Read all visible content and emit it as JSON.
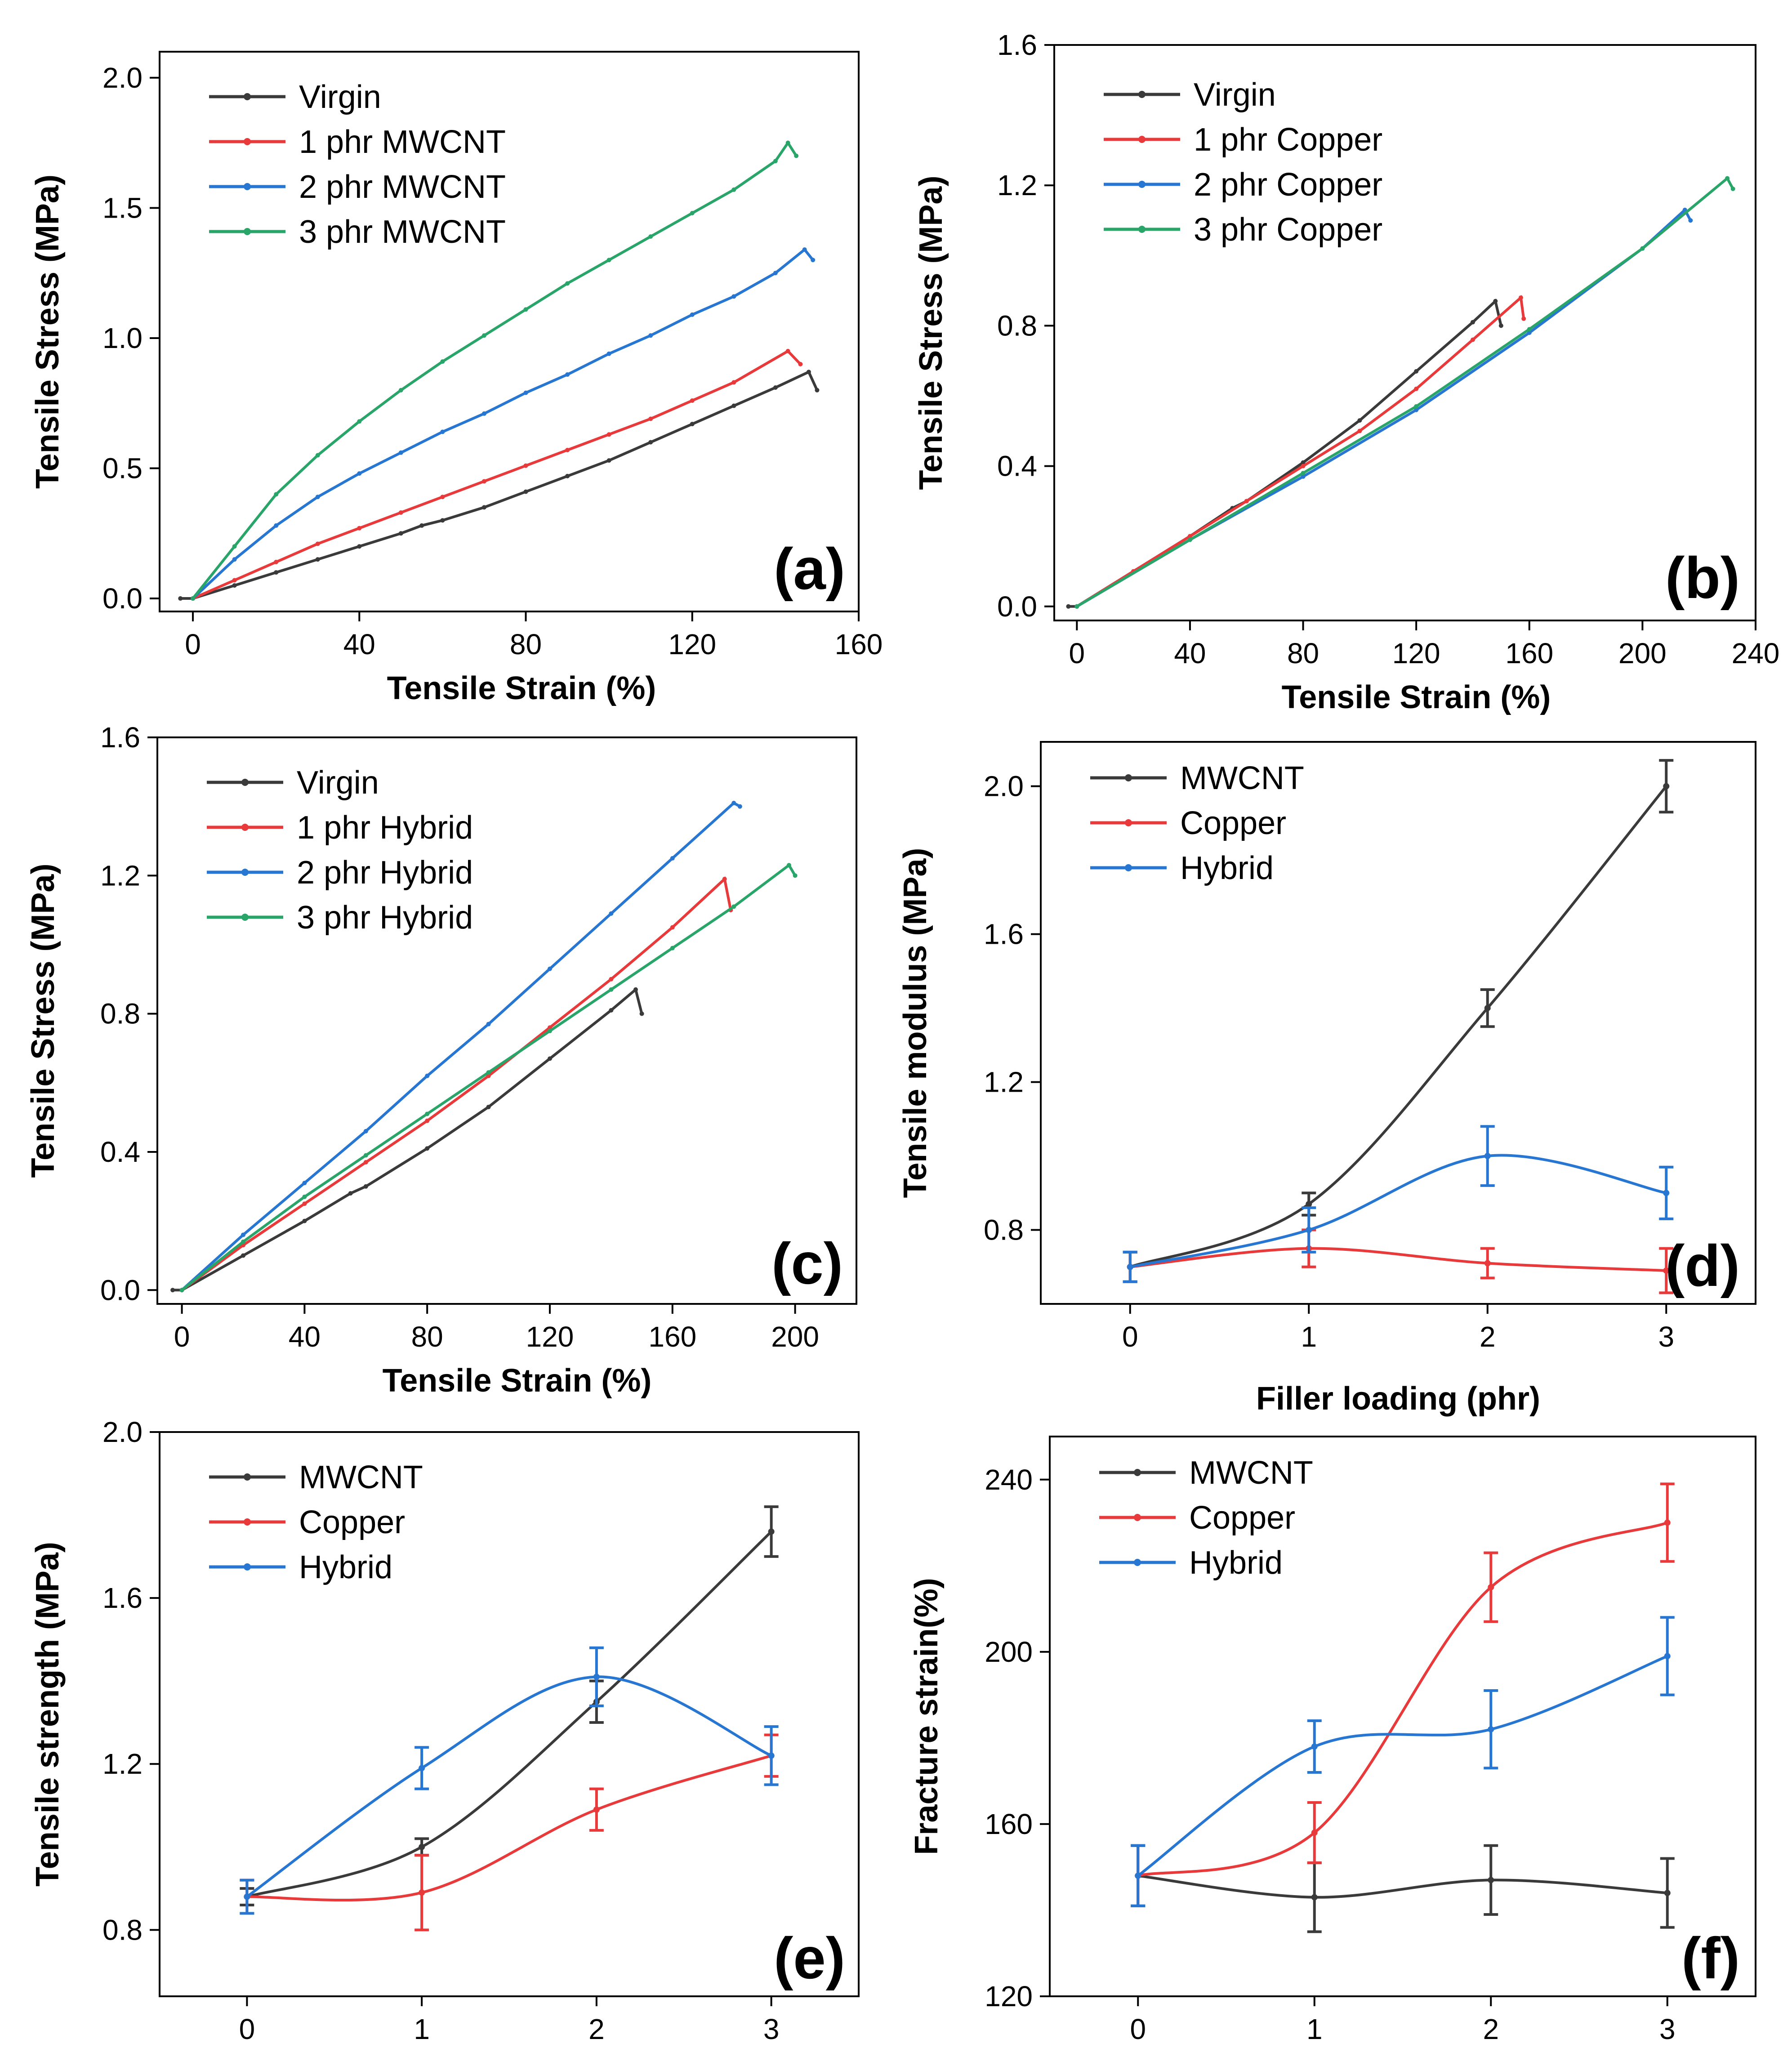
{
  "colors": {
    "virgin": "#3a3a3a",
    "red": "#e8393b",
    "blue": "#2676d2",
    "green": "#2aa56a",
    "axis": "#000000"
  },
  "chart_data": [
    {
      "type": "line",
      "panel_label": "(a)",
      "xlabel": "Tensile Strain (%)",
      "ylabel": "Tensile Stress (MPa)",
      "xlim": [
        -8,
        160
      ],
      "ylim": [
        -0.05,
        2.1
      ],
      "xticks": [
        "0",
        "40",
        "80",
        "120",
        "160"
      ],
      "yticks": [
        "0.0",
        "0.5",
        "1.0",
        "1.5",
        "2.0"
      ],
      "legend_position": "top-left",
      "series": [
        {
          "name": "Virgin",
          "color": "#3a3a3a",
          "x": [
            -3,
            0,
            10,
            20,
            30,
            40,
            50,
            55,
            60,
            70,
            80,
            90,
            100,
            110,
            120,
            130,
            140,
            148,
            150
          ],
          "y": [
            0,
            0,
            0.05,
            0.1,
            0.15,
            0.2,
            0.25,
            0.28,
            0.3,
            0.35,
            0.41,
            0.47,
            0.53,
            0.6,
            0.67,
            0.74,
            0.81,
            0.87,
            0.8
          ]
        },
        {
          "name": "1 phr MWCNT",
          "color": "#e8393b",
          "x": [
            0,
            10,
            20,
            30,
            40,
            50,
            60,
            70,
            80,
            90,
            100,
            110,
            120,
            130,
            143,
            146
          ],
          "y": [
            0,
            0.07,
            0.14,
            0.21,
            0.27,
            0.33,
            0.39,
            0.45,
            0.51,
            0.57,
            0.63,
            0.69,
            0.76,
            0.83,
            0.95,
            0.9
          ]
        },
        {
          "name": "2 phr MWCNT",
          "color": "#2676d2",
          "x": [
            0,
            10,
            20,
            30,
            40,
            50,
            60,
            70,
            80,
            90,
            100,
            110,
            120,
            130,
            140,
            147,
            149
          ],
          "y": [
            0,
            0.15,
            0.28,
            0.39,
            0.48,
            0.56,
            0.64,
            0.71,
            0.79,
            0.86,
            0.94,
            1.01,
            1.09,
            1.16,
            1.25,
            1.34,
            1.3
          ]
        },
        {
          "name": "3 phr MWCNT",
          "color": "#2aa56a",
          "x": [
            0,
            10,
            20,
            30,
            40,
            50,
            60,
            70,
            80,
            90,
            100,
            110,
            120,
            130,
            140,
            143,
            145
          ],
          "y": [
            0,
            0.2,
            0.4,
            0.55,
            0.68,
            0.8,
            0.91,
            1.01,
            1.11,
            1.21,
            1.3,
            1.39,
            1.48,
            1.57,
            1.68,
            1.75,
            1.7
          ]
        }
      ]
    },
    {
      "type": "line",
      "panel_label": "(b)",
      "xlabel": "Tensile Strain (%)",
      "ylabel": "Tensile Stress (MPa)",
      "xlim": [
        -8,
        240
      ],
      "ylim": [
        -0.04,
        1.6
      ],
      "xticks": [
        "0",
        "40",
        "80",
        "120",
        "160",
        "200",
        "240"
      ],
      "yticks": [
        "0.0",
        "0.4",
        "0.8",
        "1.2",
        "1.6"
      ],
      "legend_position": "top-left",
      "series": [
        {
          "name": "Virgin",
          "color": "#3a3a3a",
          "x": [
            -3,
            0,
            20,
            40,
            55,
            60,
            80,
            100,
            120,
            140,
            148,
            150
          ],
          "y": [
            0,
            0,
            0.1,
            0.2,
            0.28,
            0.3,
            0.41,
            0.53,
            0.67,
            0.81,
            0.87,
            0.8
          ]
        },
        {
          "name": "1 phr Copper",
          "color": "#e8393b",
          "x": [
            0,
            20,
            40,
            60,
            80,
            100,
            120,
            140,
            157,
            158
          ],
          "y": [
            0,
            0.1,
            0.2,
            0.3,
            0.4,
            0.5,
            0.62,
            0.76,
            0.88,
            0.82
          ]
        },
        {
          "name": "2 phr Copper",
          "color": "#2676d2",
          "x": [
            0,
            40,
            80,
            120,
            160,
            200,
            215,
            217
          ],
          "y": [
            0,
            0.19,
            0.37,
            0.56,
            0.78,
            1.02,
            1.13,
            1.1
          ]
        },
        {
          "name": "3 phr Copper",
          "color": "#2aa56a",
          "x": [
            0,
            40,
            80,
            120,
            160,
            200,
            230,
            232
          ],
          "y": [
            0,
            0.19,
            0.38,
            0.57,
            0.79,
            1.02,
            1.22,
            1.19
          ]
        }
      ]
    },
    {
      "type": "line",
      "panel_label": "(c)",
      "xlabel": "Tensile Strain (%)",
      "ylabel": "Tensile Stress (MPa)",
      "xlim": [
        -8,
        220
      ],
      "ylim": [
        -0.04,
        1.6
      ],
      "xticks": [
        "0",
        "40",
        "80",
        "120",
        "160",
        "200"
      ],
      "yticks": [
        "0.0",
        "0.4",
        "0.8",
        "1.2",
        "1.6"
      ],
      "legend_position": "top-left",
      "series": [
        {
          "name": "Virgin",
          "color": "#3a3a3a",
          "x": [
            -3,
            0,
            20,
            40,
            55,
            60,
            80,
            100,
            120,
            140,
            148,
            150
          ],
          "y": [
            0,
            0,
            0.1,
            0.2,
            0.28,
            0.3,
            0.41,
            0.53,
            0.67,
            0.81,
            0.87,
            0.8
          ]
        },
        {
          "name": "1 phr Hybrid",
          "color": "#e8393b",
          "x": [
            0,
            20,
            40,
            60,
            80,
            100,
            120,
            140,
            160,
            177,
            179
          ],
          "y": [
            0,
            0.13,
            0.25,
            0.37,
            0.49,
            0.62,
            0.76,
            0.9,
            1.05,
            1.19,
            1.1
          ]
        },
        {
          "name": "2 phr Hybrid",
          "color": "#2676d2",
          "x": [
            0,
            20,
            40,
            60,
            80,
            100,
            120,
            140,
            160,
            180,
            182
          ],
          "y": [
            0,
            0.16,
            0.31,
            0.46,
            0.62,
            0.77,
            0.93,
            1.09,
            1.25,
            1.41,
            1.4
          ]
        },
        {
          "name": "3 phr Hybrid",
          "color": "#2aa56a",
          "x": [
            0,
            20,
            40,
            60,
            80,
            100,
            120,
            140,
            160,
            180,
            198,
            200
          ],
          "y": [
            0,
            0.14,
            0.27,
            0.39,
            0.51,
            0.63,
            0.75,
            0.87,
            0.99,
            1.11,
            1.23,
            1.2
          ]
        }
      ]
    },
    {
      "type": "line",
      "panel_label": "(d)",
      "xlabel": "Filler loading (phr)",
      "ylabel": "Tensile modulus (MPa)",
      "xlim": [
        -0.5,
        3.5
      ],
      "ylim": [
        0.6,
        2.12
      ],
      "xticks": [
        "0",
        "1",
        "2",
        "3"
      ],
      "yticks": [
        "0.8",
        "1.2",
        "1.6",
        "2.0"
      ],
      "legend_position": "top-left",
      "series": [
        {
          "name": "MWCNT",
          "color": "#3a3a3a",
          "x": [
            0,
            1,
            2,
            3
          ],
          "y": [
            0.7,
            0.87,
            1.4,
            2.0
          ],
          "err": [
            0.04,
            0.03,
            0.05,
            0.07
          ]
        },
        {
          "name": "Copper",
          "color": "#e8393b",
          "x": [
            0,
            1,
            2,
            3
          ],
          "y": [
            0.7,
            0.75,
            0.71,
            0.69
          ],
          "err": [
            0.04,
            0.05,
            0.04,
            0.06
          ]
        },
        {
          "name": "Hybrid",
          "color": "#2676d2",
          "x": [
            0,
            1,
            2,
            3
          ],
          "y": [
            0.7,
            0.8,
            1.0,
            0.9
          ],
          "err": [
            0.04,
            0.06,
            0.08,
            0.07
          ]
        }
      ]
    },
    {
      "type": "line",
      "panel_label": "(e)",
      "xlabel": "",
      "ylabel": "Tensile strength (MPa)",
      "xlim": [
        -0.5,
        3.5
      ],
      "ylim": [
        0.64,
        2.0
      ],
      "xticks": [
        "0",
        "1",
        "2",
        "3"
      ],
      "yticks": [
        "0.8",
        "1.2",
        "1.6",
        "2.0"
      ],
      "legend_position": "top-left",
      "series": [
        {
          "name": "MWCNT",
          "color": "#3a3a3a",
          "x": [
            0,
            1,
            2,
            3
          ],
          "y": [
            0.88,
            1.0,
            1.35,
            1.76
          ],
          "err": [
            0.02,
            0.02,
            0.05,
            0.06
          ]
        },
        {
          "name": "Copper",
          "color": "#e8393b",
          "x": [
            0,
            1,
            2,
            3
          ],
          "y": [
            0.88,
            0.89,
            1.09,
            1.22
          ],
          "err": [
            0.04,
            0.09,
            0.05,
            0.05
          ]
        },
        {
          "name": "Hybrid",
          "color": "#2676d2",
          "x": [
            0,
            1,
            2,
            3
          ],
          "y": [
            0.88,
            1.19,
            1.41,
            1.22
          ],
          "err": [
            0.04,
            0.05,
            0.07,
            0.07
          ]
        }
      ]
    },
    {
      "type": "line",
      "panel_label": "(f)",
      "xlabel": "",
      "ylabel": "Fracture strain(%)",
      "xlim": [
        -0.5,
        3.5
      ],
      "ylim": [
        120,
        250
      ],
      "xticks": [
        "0",
        "1",
        "2",
        "3"
      ],
      "yticks": [
        "120",
        "160",
        "200",
        "240"
      ],
      "legend_position": "top-left",
      "series": [
        {
          "name": "MWCNT",
          "color": "#3a3a3a",
          "x": [
            0,
            1,
            2,
            3
          ],
          "y": [
            148,
            143,
            147,
            144
          ],
          "err": [
            7,
            8,
            8,
            8
          ]
        },
        {
          "name": "Copper",
          "color": "#e8393b",
          "x": [
            0,
            1,
            2,
            3
          ],
          "y": [
            148,
            158,
            215,
            230
          ],
          "err": [
            7,
            7,
            8,
            9
          ]
        },
        {
          "name": "Hybrid",
          "color": "#2676d2",
          "x": [
            0,
            1,
            2,
            3
          ],
          "y": [
            148,
            178,
            182,
            199
          ],
          "err": [
            7,
            6,
            9,
            9
          ]
        }
      ]
    }
  ]
}
